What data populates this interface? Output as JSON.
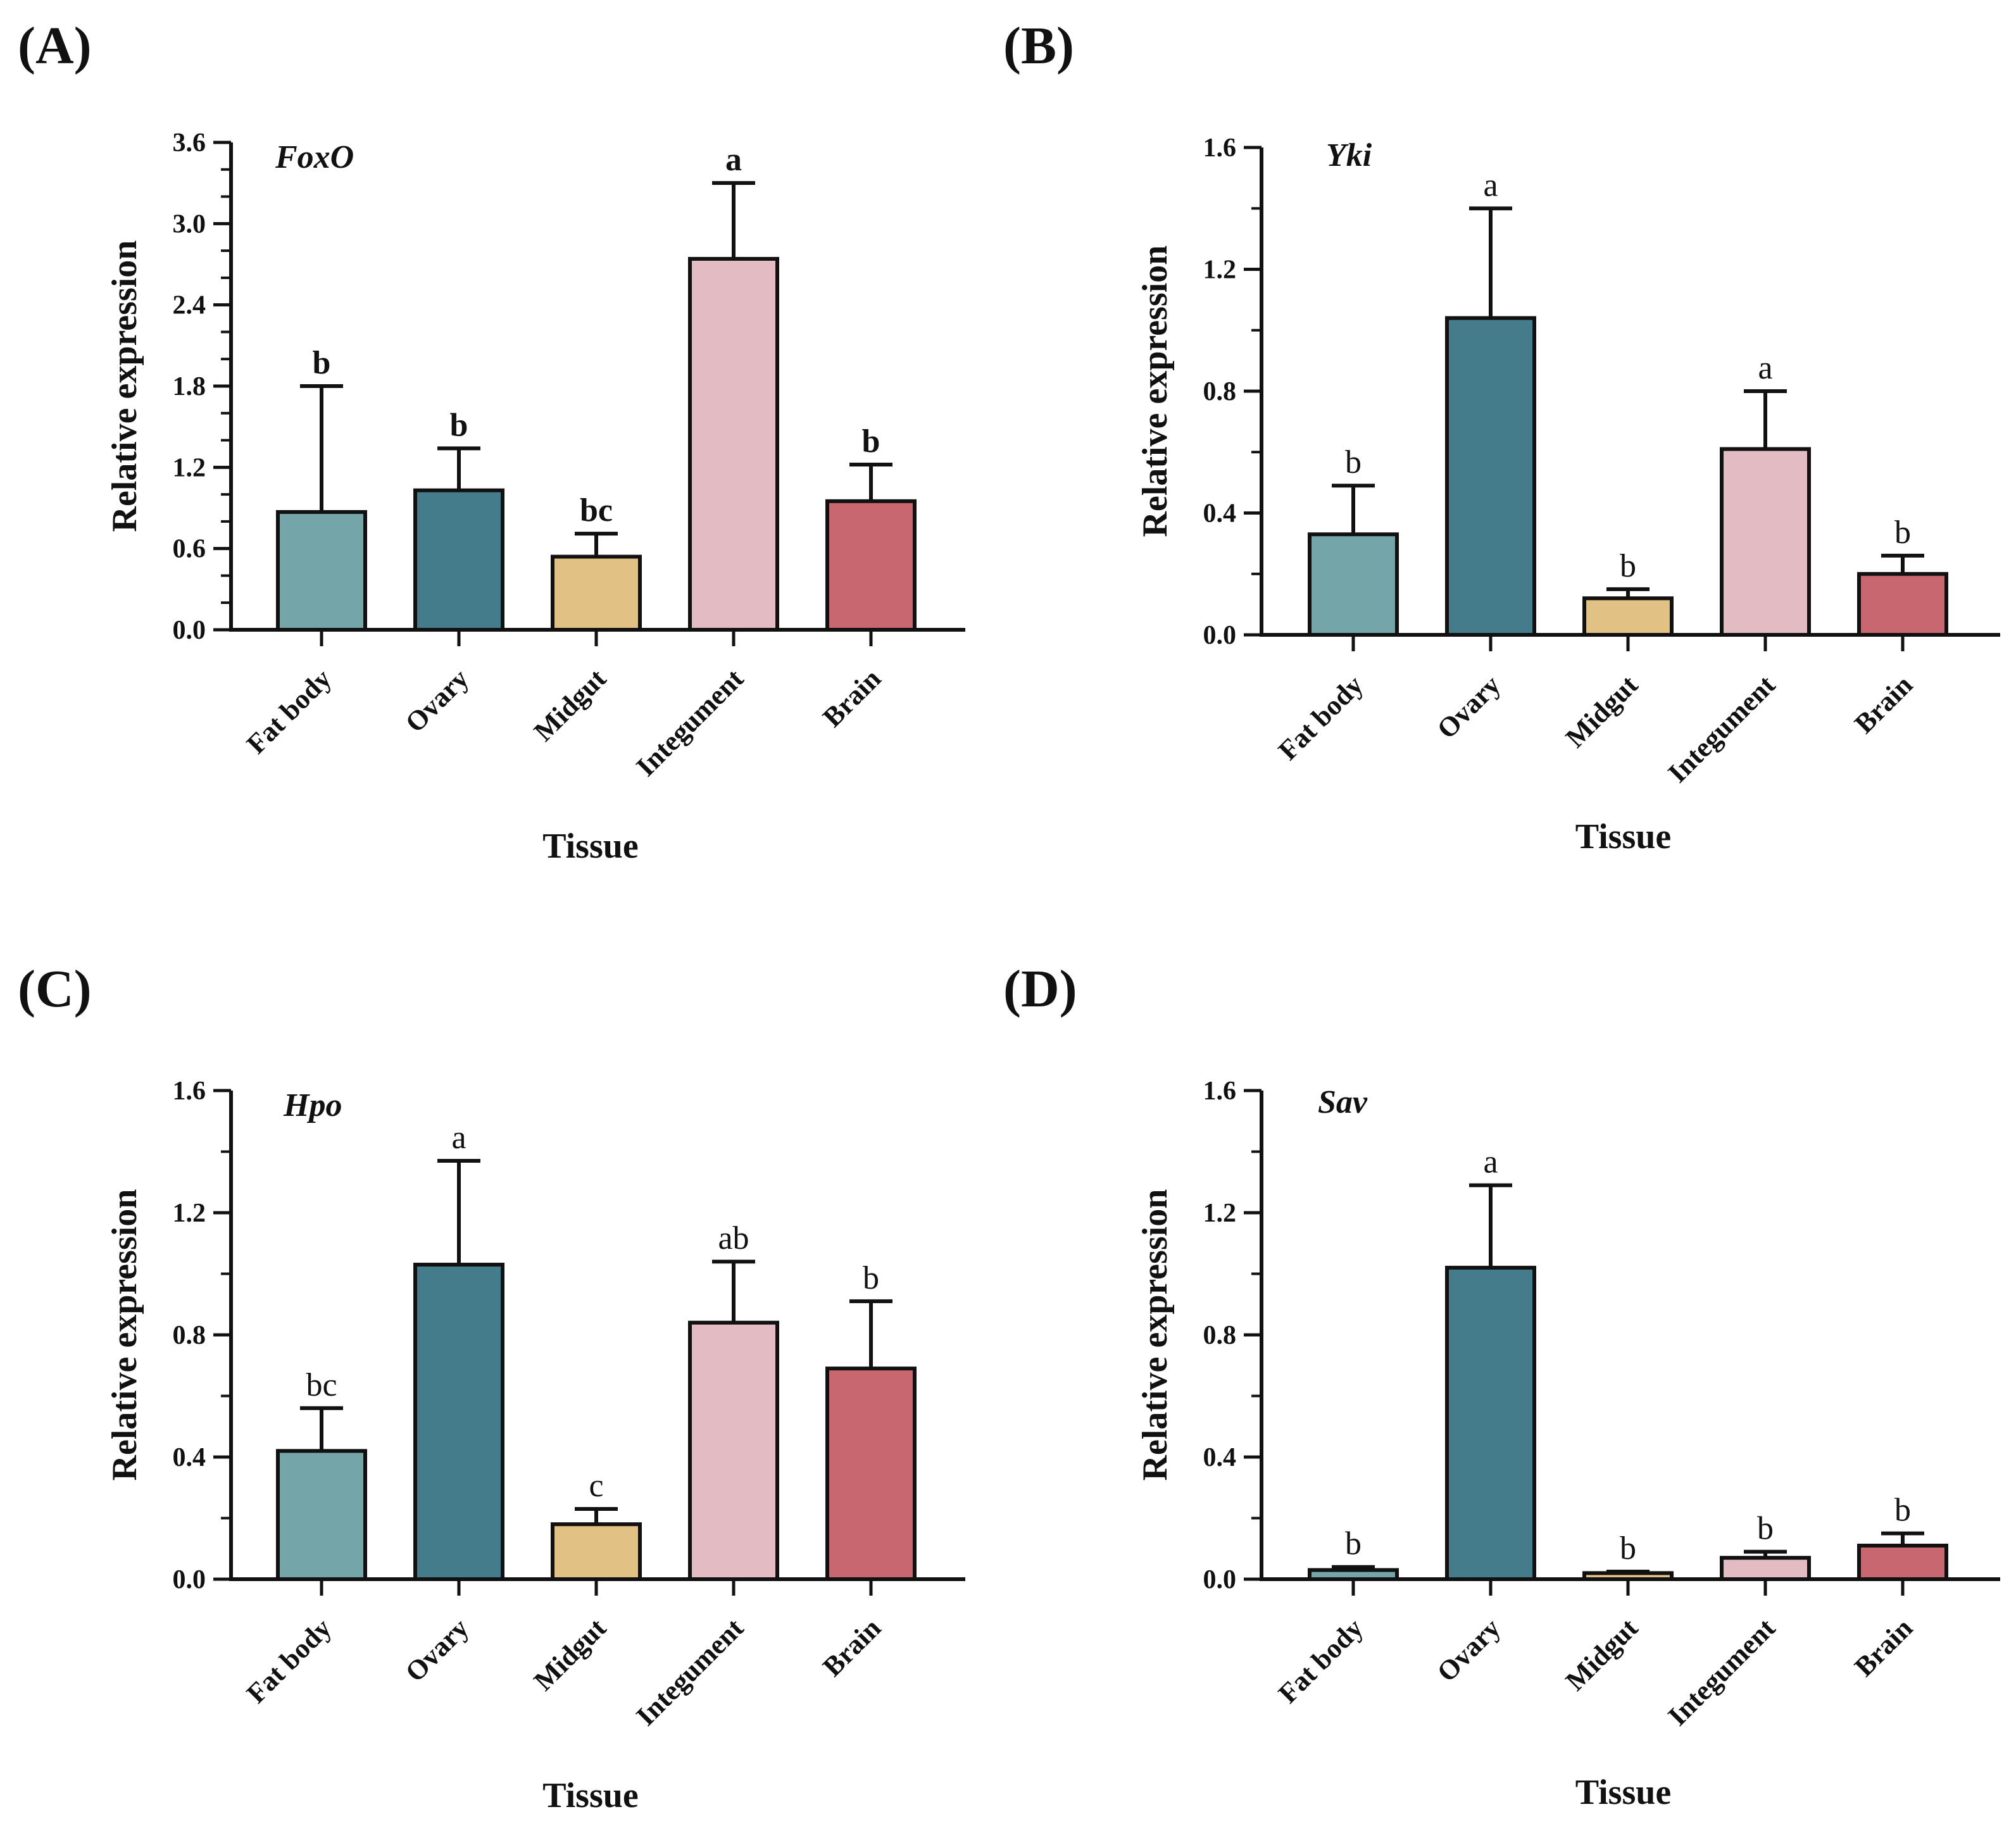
{
  "chart_data": [
    {
      "type": "bar",
      "panel_label": "(A)",
      "title": "FoxO",
      "xlabel": "Tissue",
      "ylabel": "Relative expression",
      "categories": [
        "Fat body",
        "Ovary",
        "Midgut",
        "Integument",
        "Brain"
      ],
      "values": [
        0.87,
        1.03,
        0.54,
        2.74,
        0.95
      ],
      "errors": [
        0.93,
        0.31,
        0.17,
        0.56,
        0.27
      ],
      "significance": [
        "b",
        "b",
        "bc",
        "a",
        "b"
      ],
      "significance_bold": true,
      "ylim": [
        0,
        3.6
      ],
      "yticks": [
        "0.0",
        "0.6",
        "1.2",
        "1.8",
        "2.4",
        "3.0",
        "3.6"
      ],
      "ytick_values": [
        0,
        0.6,
        1.2,
        1.8,
        2.4,
        3.0,
        3.6
      ],
      "colors": [
        "#74a6a9",
        "#457c8c",
        "#e2c184",
        "#e2bbc3",
        "#c8676f"
      ]
    },
    {
      "type": "bar",
      "panel_label": "(B)",
      "title": "Yki",
      "xlabel": "Tissue",
      "ylabel": "Relative expression",
      "categories": [
        "Fat body",
        "Ovary",
        "Midgut",
        "Integument",
        "Brain"
      ],
      "values": [
        0.33,
        1.04,
        0.12,
        0.61,
        0.2
      ],
      "errors": [
        0.16,
        0.36,
        0.03,
        0.19,
        0.06
      ],
      "significance": [
        "b",
        "a",
        "b",
        "a",
        "b"
      ],
      "significance_bold": false,
      "ylim": [
        0,
        1.6
      ],
      "yticks": [
        "0.0",
        "0.4",
        "0.8",
        "1.2",
        "1.6"
      ],
      "ytick_values": [
        0,
        0.4,
        0.8,
        1.2,
        1.6
      ],
      "colors": [
        "#74a6a9",
        "#457c8c",
        "#e2c184",
        "#e2bbc3",
        "#c8676f"
      ]
    },
    {
      "type": "bar",
      "panel_label": "(C)",
      "title": "Hpo",
      "xlabel": "Tissue",
      "ylabel": "Relative expression",
      "categories": [
        "Fat body",
        "Ovary",
        "Midgut",
        "Integument",
        "Brain"
      ],
      "values": [
        0.42,
        1.03,
        0.18,
        0.84,
        0.69
      ],
      "errors": [
        0.14,
        0.34,
        0.05,
        0.2,
        0.22
      ],
      "significance": [
        "bc",
        "a",
        "c",
        "ab",
        "b"
      ],
      "significance_bold": false,
      "ylim": [
        0,
        1.6
      ],
      "yticks": [
        "0.0",
        "0.4",
        "0.8",
        "1.2",
        "1.6"
      ],
      "ytick_values": [
        0,
        0.4,
        0.8,
        1.2,
        1.6
      ],
      "colors": [
        "#74a6a9",
        "#457c8c",
        "#e2c184",
        "#e2bbc3",
        "#c8676f"
      ]
    },
    {
      "type": "bar",
      "panel_label": "(D)",
      "title": "Sav",
      "xlabel": "Tissue",
      "ylabel": "Relative expression",
      "categories": [
        "Fat body",
        "Ovary",
        "Midgut",
        "Integument",
        "Brain"
      ],
      "values": [
        0.03,
        1.02,
        0.02,
        0.07,
        0.11
      ],
      "errors": [
        0.01,
        0.27,
        0.005,
        0.02,
        0.04
      ],
      "significance": [
        "b",
        "a",
        "b",
        "b",
        "b"
      ],
      "significance_bold": false,
      "ylim": [
        0,
        1.6
      ],
      "yticks": [
        "0.0",
        "0.4",
        "0.8",
        "1.2",
        "1.6"
      ],
      "ytick_values": [
        0,
        0.4,
        0.8,
        1.2,
        1.6
      ],
      "colors": [
        "#74a6a9",
        "#457c8c",
        "#e2c184",
        "#e2bbc3",
        "#c8676f"
      ]
    }
  ]
}
